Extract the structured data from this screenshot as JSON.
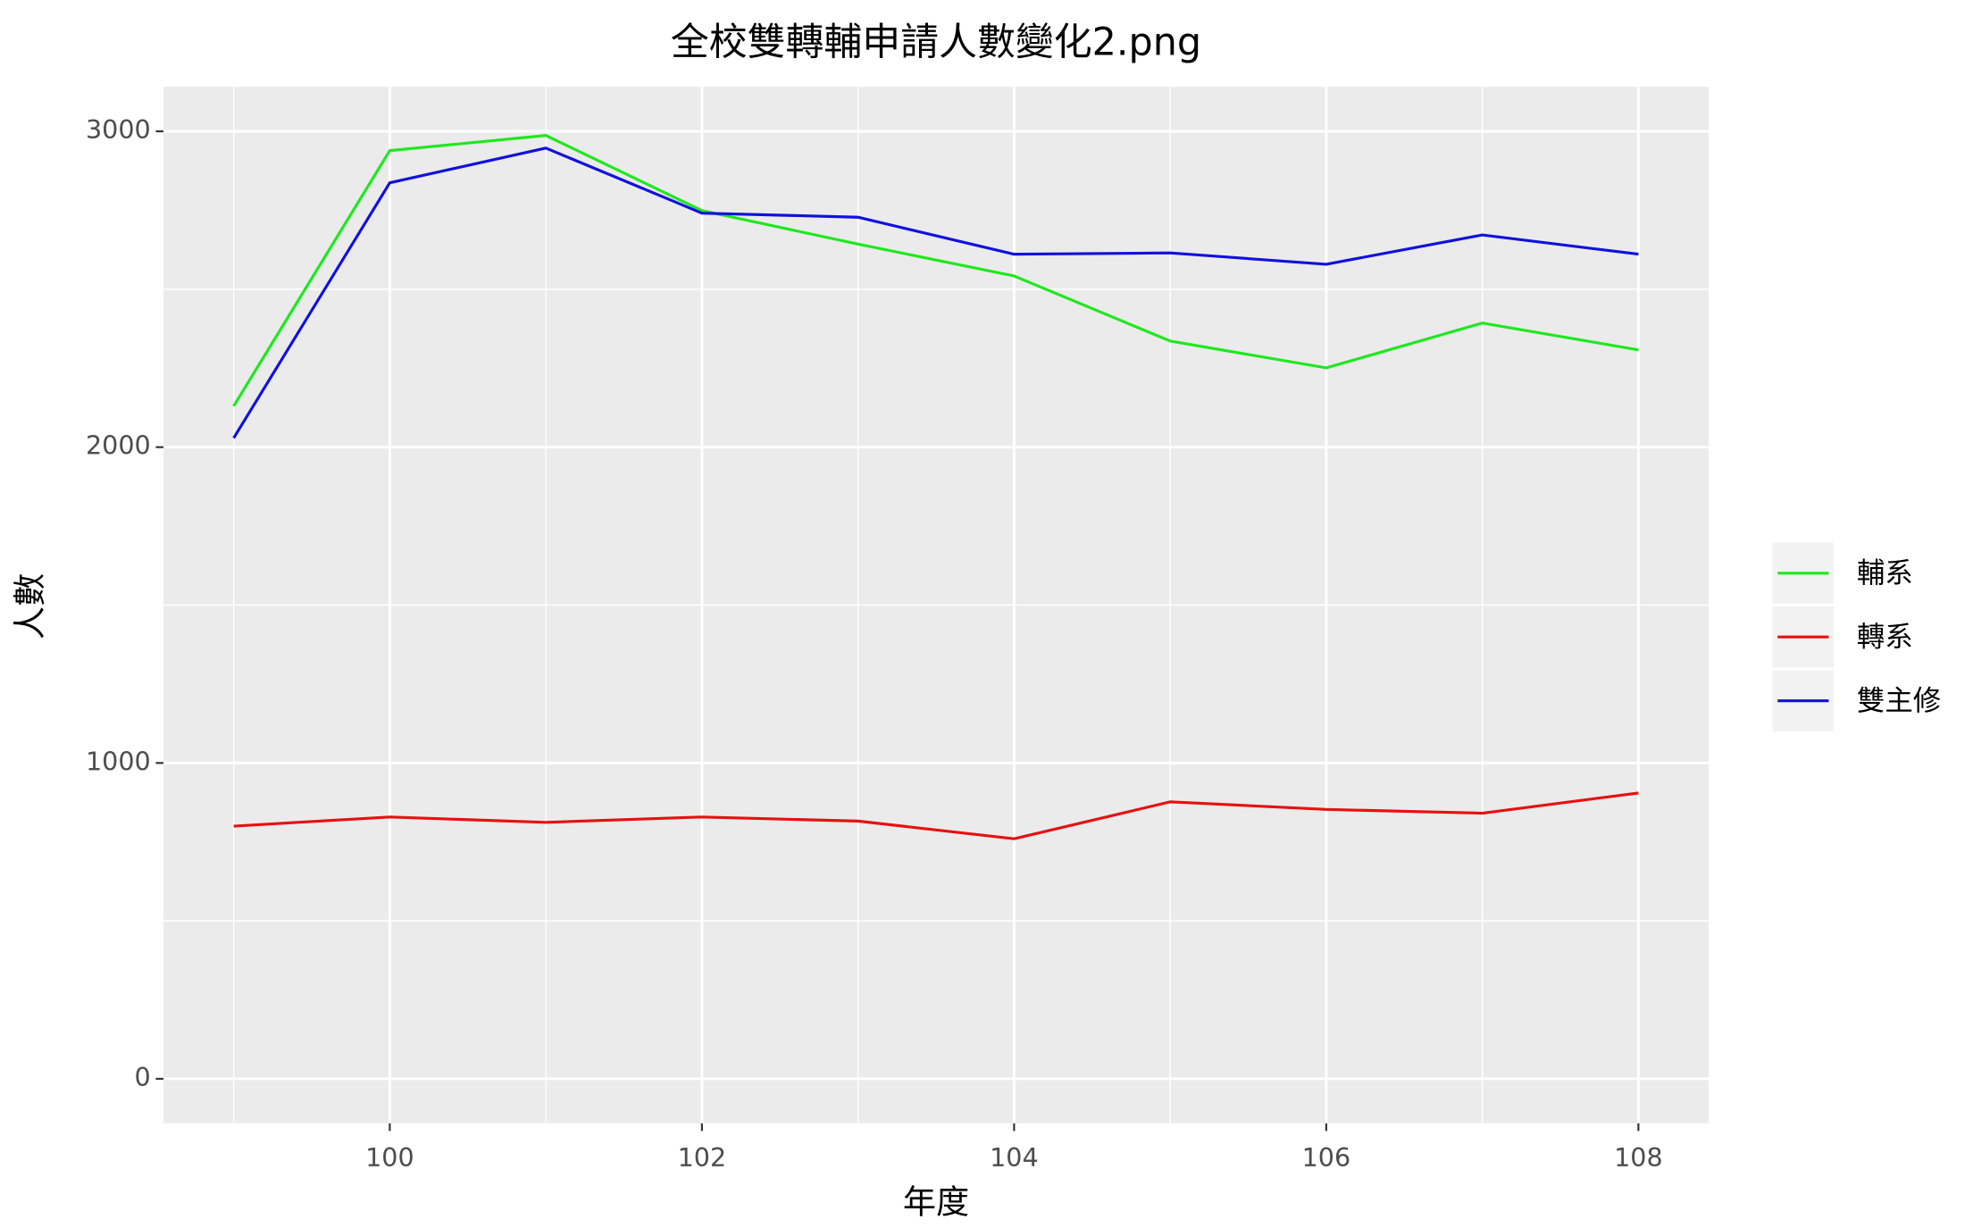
{
  "chart_data": {
    "type": "line",
    "title": "全校雙轉輔申請人數變化2.png",
    "x_label": "年度",
    "y_label": "人數",
    "x": [
      99,
      100,
      101,
      102,
      103,
      104,
      105,
      106,
      107,
      108
    ],
    "series": [
      {
        "name": "輔系",
        "color": "#1ee81e",
        "values": [
          2130,
          2939,
          2987,
          2749,
          2643,
          2542,
          2336,
          2251,
          2393,
          2308
        ]
      },
      {
        "name": "轉系",
        "color": "#e81010",
        "values": [
          800,
          829,
          812,
          829,
          816,
          760,
          877,
          853,
          841,
          905
        ]
      },
      {
        "name": "雙主修",
        "color": "#1010e0",
        "values": [
          2029,
          2837,
          2947,
          2741,
          2728,
          2611,
          2615,
          2579,
          2672,
          2611
        ]
      }
    ],
    "xlim": [
      98.55,
      108.45
    ],
    "ylim": [
      -141,
      3141
    ],
    "xticks": [
      100,
      102,
      104,
      106,
      108
    ],
    "yticks": [
      0,
      1000,
      2000,
      3000
    ],
    "minor_xticks": [
      99,
      101,
      103,
      105,
      107
    ],
    "minor_yticks": [
      500,
      1500,
      2500
    ],
    "grid": true,
    "legend": "right"
  }
}
